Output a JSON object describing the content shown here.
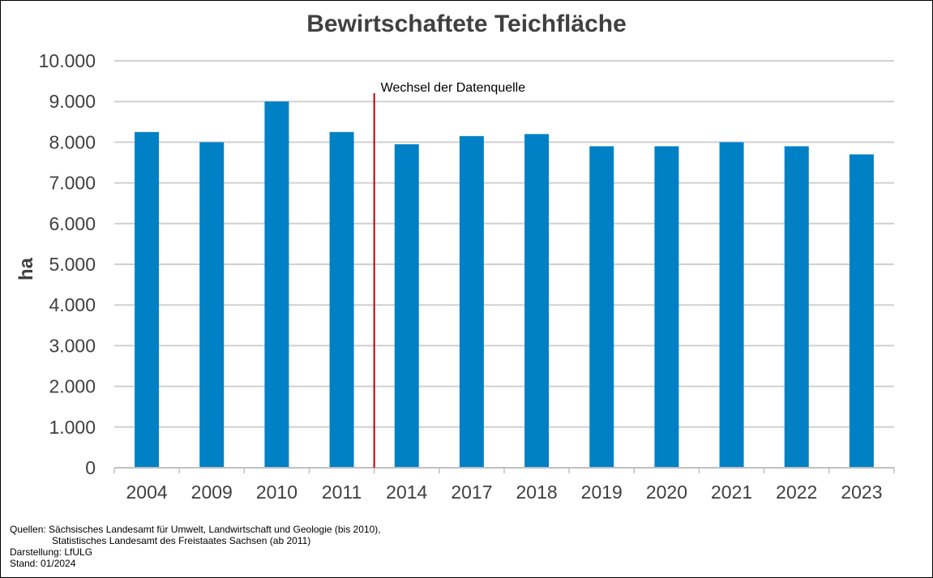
{
  "chart_data": {
    "type": "bar",
    "title": "Bewirtschaftete Teichfläche",
    "ylabel": "ha",
    "xlabel": "",
    "categories": [
      "2004",
      "2009",
      "2010",
      "2011",
      "2014",
      "2017",
      "2018",
      "2019",
      "2020",
      "2021",
      "2022",
      "2023"
    ],
    "values": [
      8250,
      8000,
      9000,
      8250,
      7950,
      8150,
      8200,
      7900,
      7900,
      8000,
      7900,
      7700
    ],
    "ylim": [
      0,
      10000
    ],
    "yticks": [
      0,
      1000,
      2000,
      3000,
      4000,
      5000,
      6000,
      7000,
      8000,
      9000,
      10000
    ],
    "ytick_labels": [
      "0",
      "1.000",
      "2.000",
      "3.000",
      "4.000",
      "5.000",
      "6.000",
      "7.000",
      "8.000",
      "9.000",
      "10.000"
    ],
    "grid": true,
    "bar_color": "#0081C6",
    "annotation": {
      "text": "Wechsel der Datenquelle",
      "between": [
        "2011",
        "2014"
      ],
      "color": "#C00000"
    }
  },
  "footer": {
    "line1": "Quellen: Sächsisches Landesamt für Umwelt, Landwirtschaft und Geologie (bis 2010),",
    "line2": "Statistisches Landesamt des Freistaates Sachsen (ab 2011)",
    "line3": "Darstellung: LfULG",
    "line4": "Stand: 01/2024"
  }
}
